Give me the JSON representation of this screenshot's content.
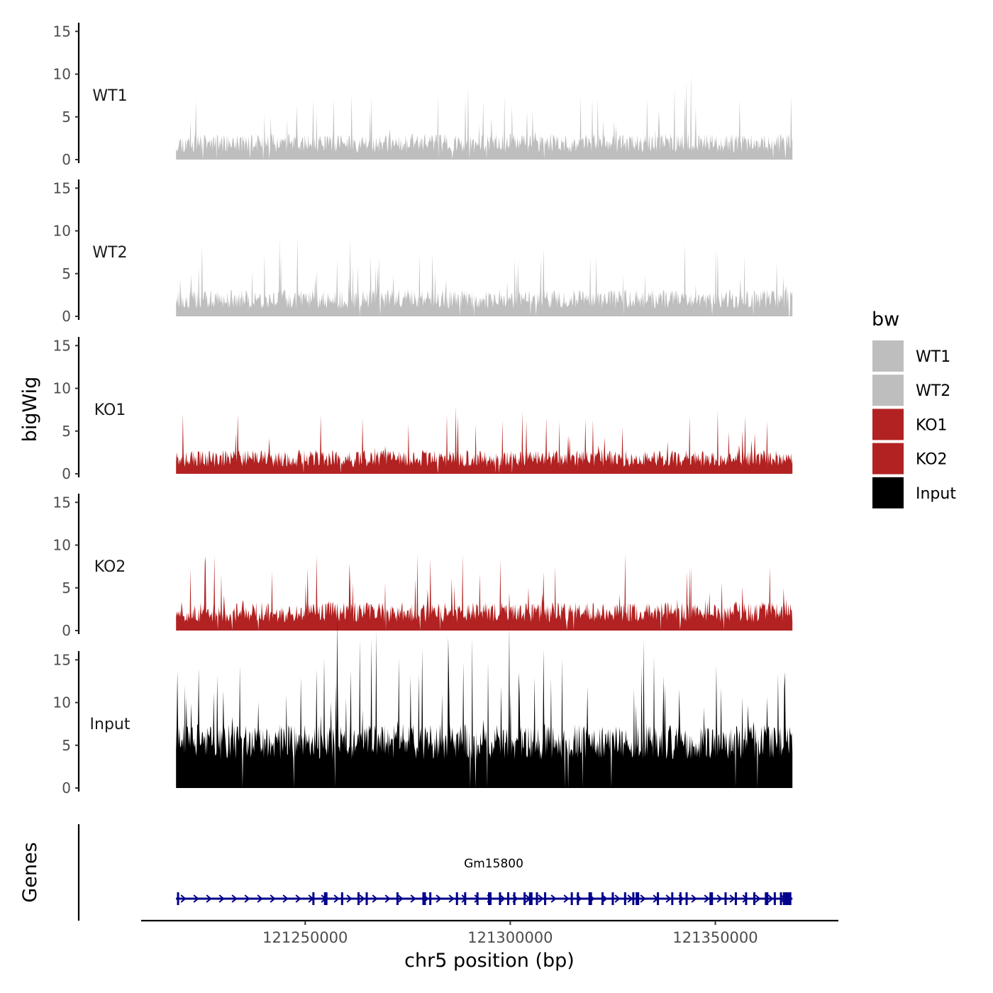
{
  "chart_data": {
    "type": "area",
    "ylabel": "bigWig",
    "xlabel": "chr5 position (bp)",
    "genes_label": "Genes",
    "xlim": [
      121210000,
      121380000
    ],
    "x_ticks": [
      121250000,
      121300000,
      121350000
    ],
    "x_tick_labels": [
      "121250000",
      "121300000",
      "121350000"
    ],
    "data_range": [
      121218500,
      121368800
    ],
    "ylim": [
      0,
      16
    ],
    "y_ticks": [
      0,
      5,
      10,
      15
    ],
    "y_tick_labels": [
      "0",
      "5",
      "10",
      "15"
    ],
    "legend": {
      "title": "bw",
      "position": "right",
      "entries": [
        {
          "label": "WT1",
          "color": "#bebebe"
        },
        {
          "label": "WT2",
          "color": "#bebebe"
        },
        {
          "label": "KO1",
          "color": "#b22222"
        },
        {
          "label": "KO2",
          "color": "#b22222"
        },
        {
          "label": "Input",
          "color": "#000000"
        }
      ]
    },
    "series": [
      {
        "name": "WT1",
        "color": "#bebebe",
        "base": 1.6,
        "noise": 2.2,
        "peak_prob": 0.05,
        "peak_max": 6.5,
        "seed": 11,
        "peaks": [
          [
            121344000,
            10.0
          ],
          [
            121252000,
            7.0
          ],
          [
            121257000,
            7.1
          ],
          [
            121320000,
            7.3
          ],
          [
            121289000,
            7.2
          ],
          [
            121356000,
            7.0
          ]
        ]
      },
      {
        "name": "WT2",
        "color": "#bebebe",
        "base": 1.7,
        "noise": 2.3,
        "peak_prob": 0.05,
        "peak_max": 6.8,
        "seed": 23,
        "peaks": [
          [
            121240000,
            7.4
          ],
          [
            121244000,
            7.2
          ],
          [
            121266000,
            7.1
          ],
          [
            121268000,
            6.9
          ],
          [
            121302000,
            6.5
          ],
          [
            121365000,
            6.4
          ]
        ]
      },
      {
        "name": "KO1",
        "color": "#b22222",
        "base": 1.5,
        "noise": 2.0,
        "peak_prob": 0.05,
        "peak_max": 5.8,
        "seed": 37,
        "peaks": [
          [
            121233500,
            7.0
          ],
          [
            121303000,
            7.3
          ],
          [
            121304000,
            6.2
          ],
          [
            121350500,
            7.4
          ],
          [
            121298000,
            6.3
          ]
        ]
      },
      {
        "name": "KO2",
        "color": "#b22222",
        "base": 1.8,
        "noise": 2.4,
        "peak_prob": 0.06,
        "peak_max": 6.5,
        "seed": 51,
        "peaks": [
          [
            121280500,
            8.4
          ],
          [
            121297500,
            8.3
          ],
          [
            121225500,
            8.0
          ],
          [
            121311000,
            7.6
          ],
          [
            121344000,
            7.5
          ],
          [
            121343000,
            6.9
          ]
        ]
      },
      {
        "name": "Input",
        "color": "#000000",
        "base": 4.8,
        "noise": 4.2,
        "peak_prob": 0.08,
        "peak_max": 13.0,
        "seed": 73,
        "peaks": [
          [
            121335000,
            15.5
          ],
          [
            121218800,
            13.7
          ],
          [
            121224000,
            14.0
          ],
          [
            121234000,
            14.3
          ],
          [
            121249000,
            13.0
          ],
          [
            121285000,
            13.4
          ],
          [
            121306000,
            13.0
          ],
          [
            121332000,
            14.2
          ],
          [
            121367000,
            13.6
          ],
          [
            121310000,
            12.8
          ]
        ]
      }
    ],
    "gene": {
      "name": "Gm15800",
      "start": 121218500,
      "end": 121368800,
      "strand": "+",
      "color": "#00008b",
      "exons": [
        121219000,
        121252000,
        121255000,
        121259000,
        121263000,
        121265000,
        121272500,
        121279000,
        121280500,
        121287000,
        121289000,
        121292000,
        121295000,
        121297500,
        121299500,
        121301000,
        121303500,
        121305000,
        121306500,
        121308500,
        121315000,
        121316500,
        121319500,
        121322500,
        121325000,
        121328000,
        121330000,
        121331000,
        121336000,
        121339500,
        121341500,
        121343000,
        121349000,
        121352500,
        121355000,
        121357500,
        121359500,
        121362500,
        121364500,
        121366000,
        121367500
      ]
    }
  }
}
